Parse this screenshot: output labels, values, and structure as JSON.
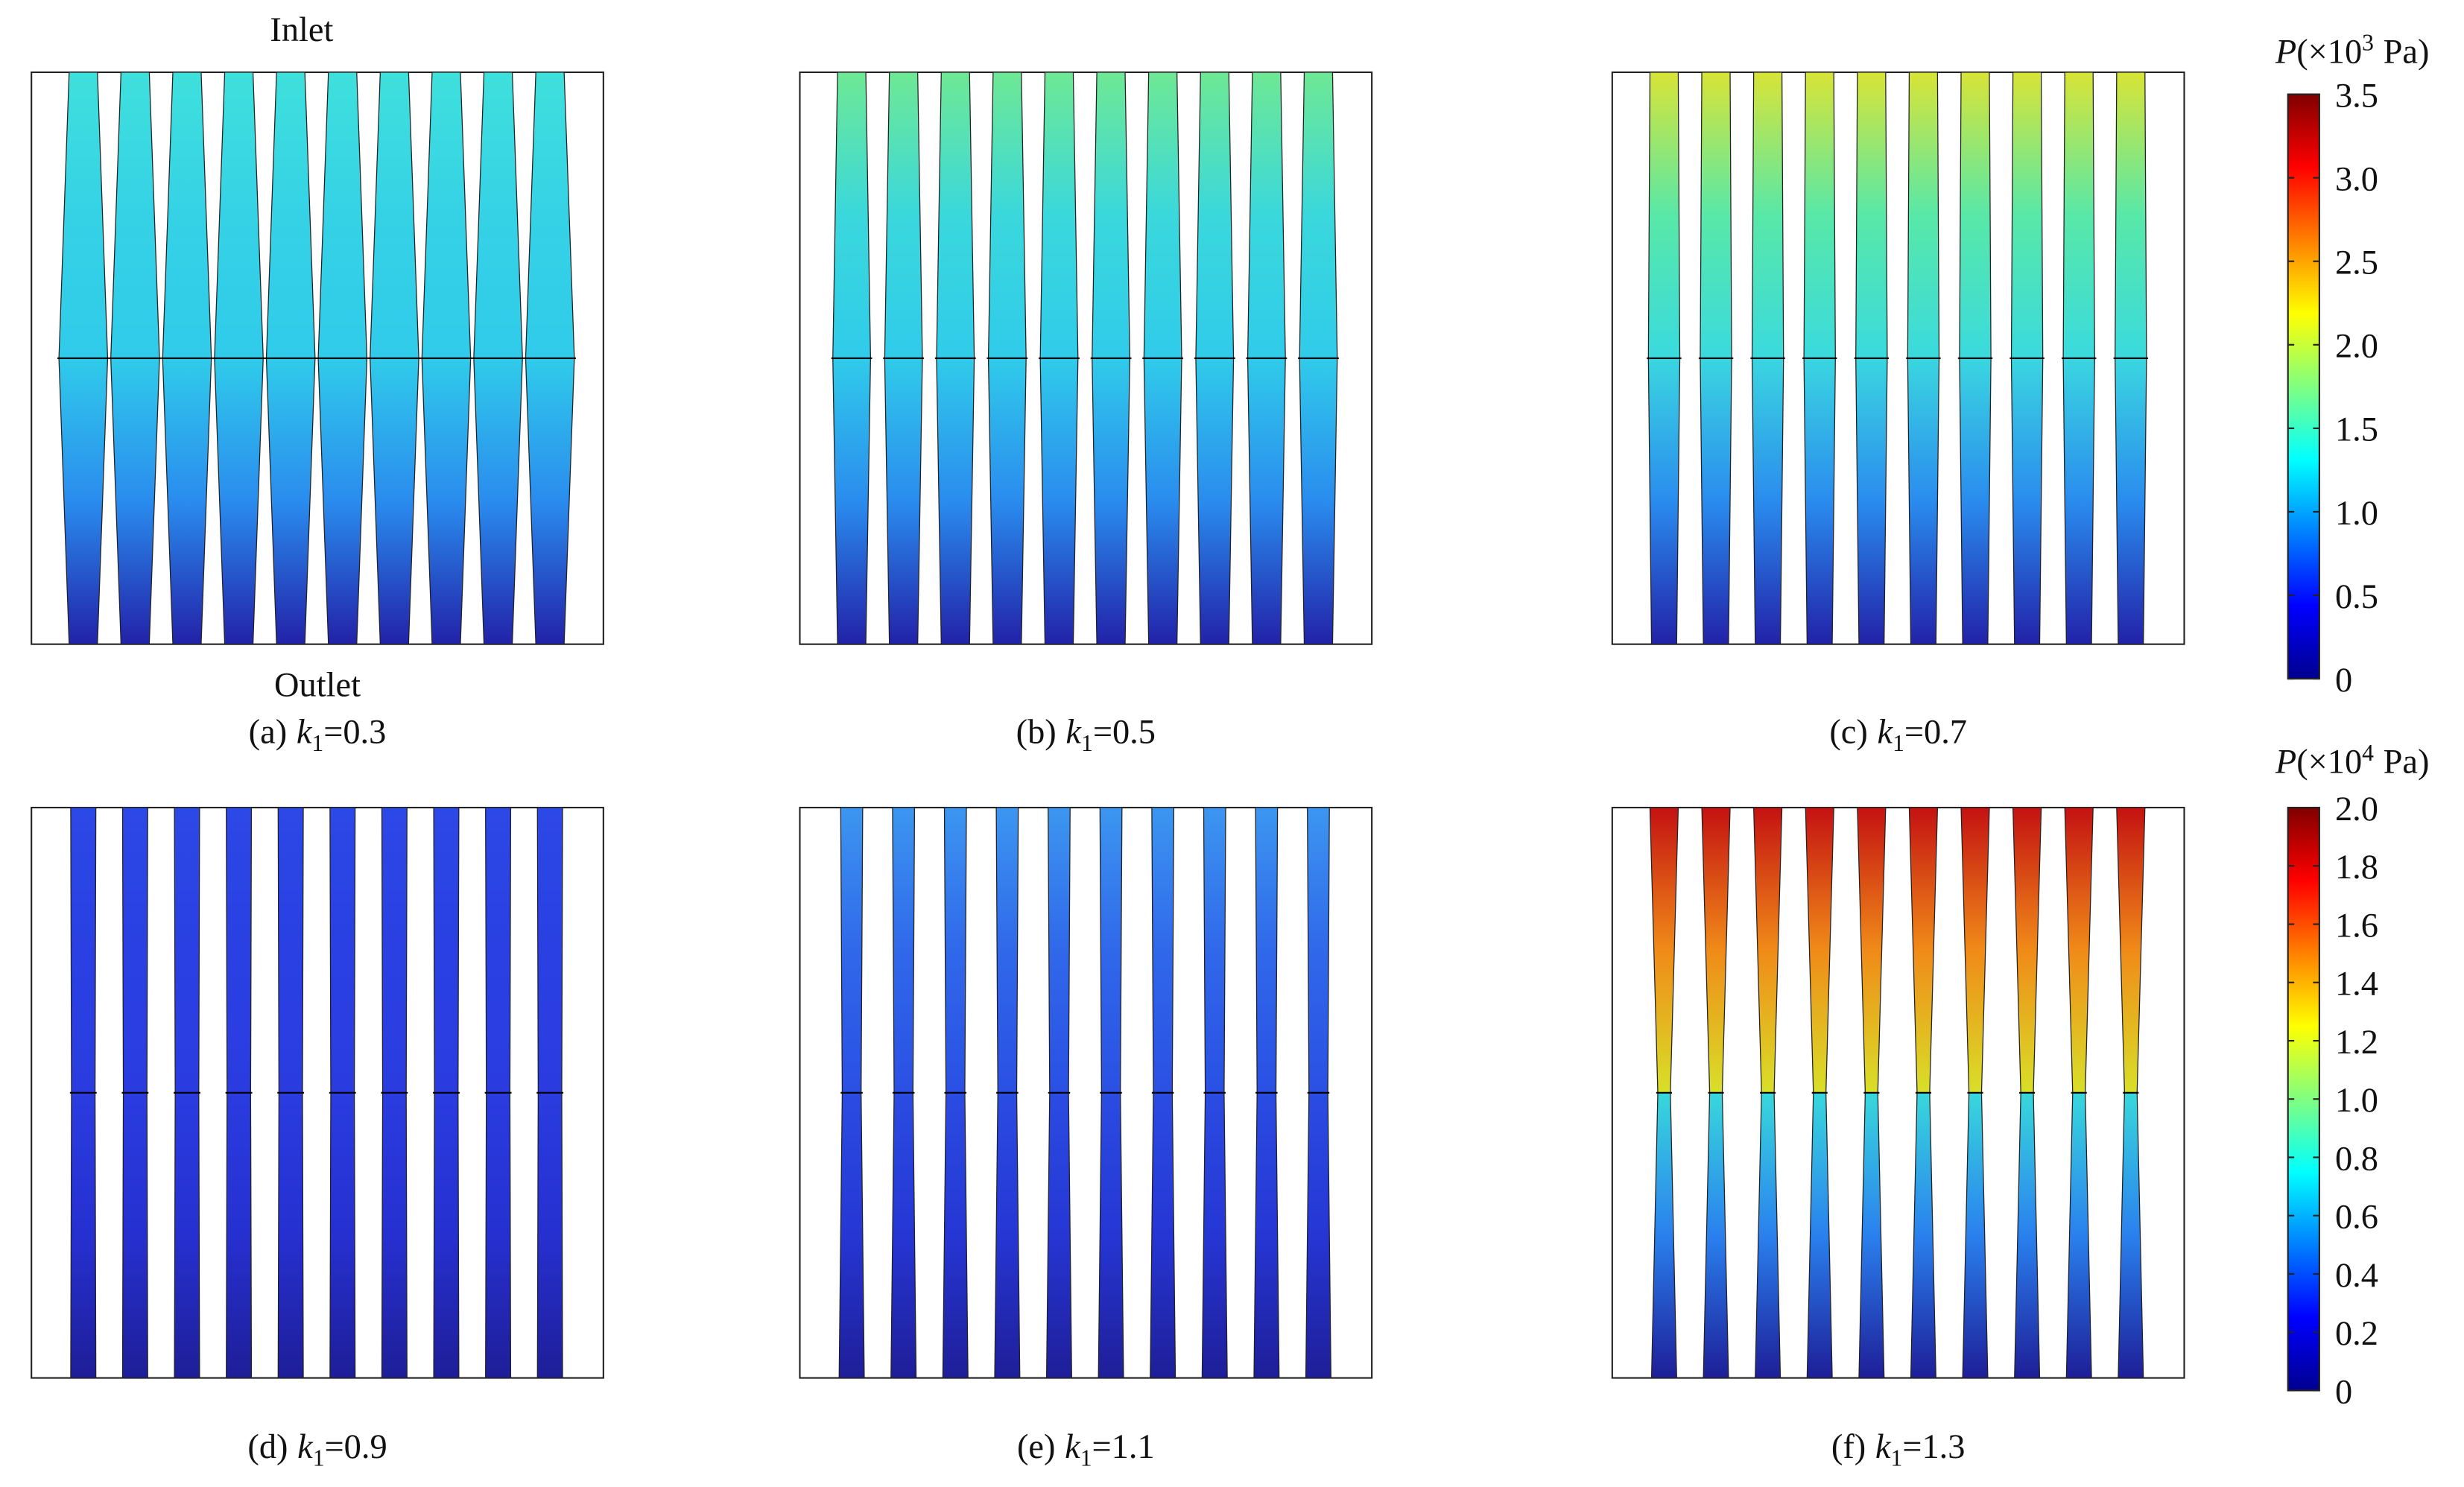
{
  "inlet_label": "Inlet",
  "outlet_label": "Outlet",
  "panels": [
    {
      "label": "(a)",
      "symbol": "k",
      "subscript": "1",
      "value": "=0.3"
    },
    {
      "label": "(b)",
      "symbol": "k",
      "subscript": "1",
      "value": "=0.5"
    },
    {
      "label": "(c)",
      "symbol": "k",
      "subscript": "1",
      "value": "=0.7"
    },
    {
      "label": "(d)",
      "symbol": "k",
      "subscript": "1",
      "value": "=0.9"
    },
    {
      "label": "(e)",
      "symbol": "k",
      "subscript": "1",
      "value": "=1.1"
    },
    {
      "label": "(f)",
      "symbol": "k",
      "subscript": "1",
      "value": "=1.3"
    }
  ],
  "colorbars": [
    {
      "symbol": "P",
      "unit_prefix": "(×10",
      "exponent": "3",
      "unit": "Pa)",
      "range": [
        0,
        3.5
      ],
      "ticks": [
        0,
        0.5,
        {
          "value": 1,
          "label": "1.0"
        },
        1.5,
        {
          "value": 2,
          "label": "2.0"
        },
        2.5,
        {
          "value": 3,
          "label": "3.0"
        },
        3.5
      ]
    },
    {
      "symbol": "P",
      "unit_prefix": "(×10",
      "exponent": "4",
      "unit": "Pa)",
      "range": [
        0,
        2
      ],
      "ticks": [
        0,
        0.2,
        0.4,
        0.6,
        0.8,
        {
          "value": 1,
          "label": "1.0"
        },
        1.2,
        1.4,
        1.6,
        1.8,
        {
          "value": 2,
          "label": "2.0"
        }
      ]
    }
  ]
}
